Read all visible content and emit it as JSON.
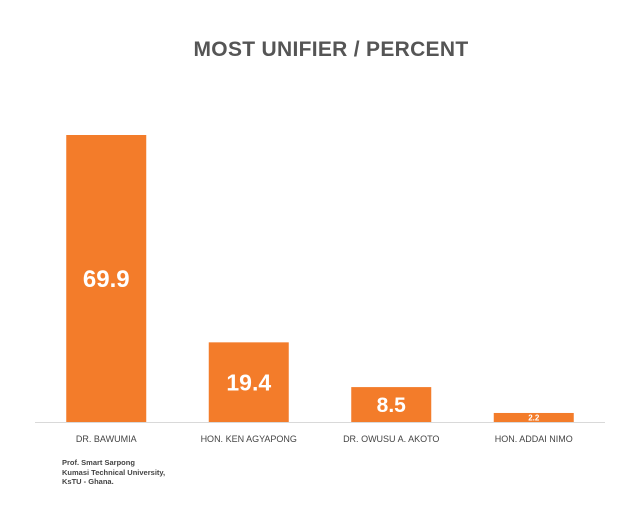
{
  "chart_data": {
    "type": "bar",
    "title": "MOST UNIFIER / PERCENT",
    "categories": [
      "DR. BAWUMIA",
      "HON. KEN AGYAPONG",
      "DR. OWUSU A. AKOTO",
      "HON. ADDAI NIMO"
    ],
    "values": [
      69.9,
      19.4,
      8.5,
      2.2
    ],
    "data_labels": [
      "69.9",
      "19.4",
      "8.5",
      "2.2"
    ],
    "xlabel": "",
    "ylabel": "",
    "ylim": [
      0,
      69.9
    ],
    "grid": false,
    "legend": "none",
    "bar_color": "#F37C2A",
    "label_color": "#FFFFFF",
    "axis_color": "#D9D9D9",
    "category_label_color": "#444444"
  },
  "source_note": {
    "line1": "Prof. Smart Sarpong",
    "line2": "Kumasi Technical University,",
    "line3": "KsTU - Ghana."
  }
}
